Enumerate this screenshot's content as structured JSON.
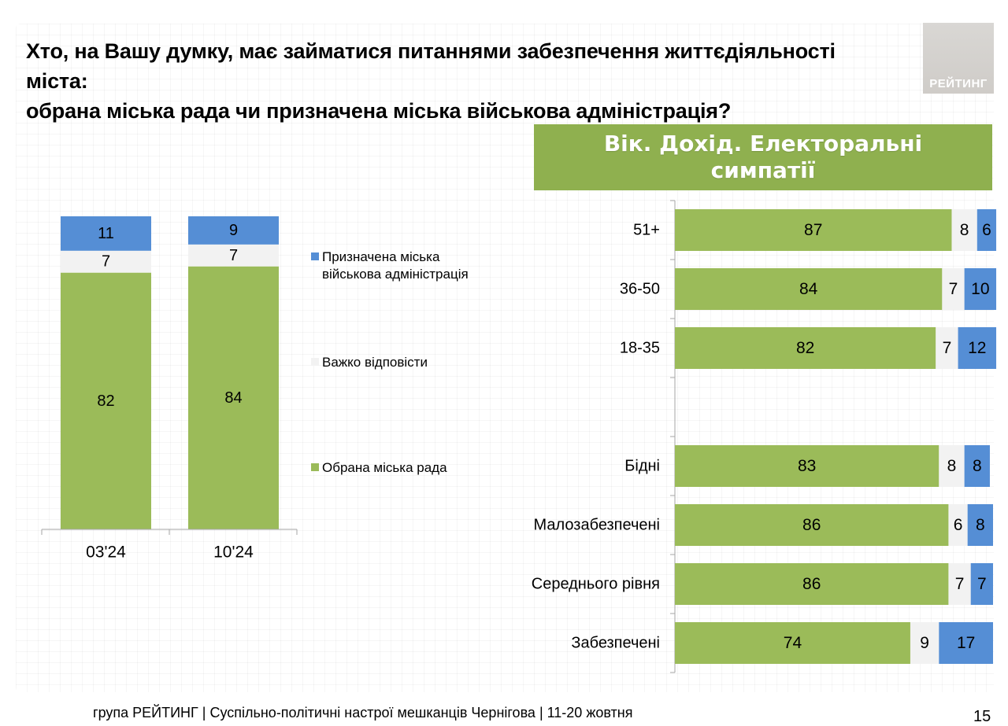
{
  "title": {
    "line1": "Хто, на Вашу думку, має займатися питаннями забезпечення життєдіяльності міста:",
    "line2": "обрана міська рада чи призначена міська військова адміністрація?"
  },
  "logo": {
    "text": "РЕЙТИНГ"
  },
  "banner": {
    "line1": "Вік. Дохід. Електоральні",
    "line2": "симпатії"
  },
  "colors": {
    "green": "#9bbb59",
    "light": "#f2f2f2",
    "blue": "#558ed5",
    "banner": "#8fb04f"
  },
  "legend": [
    {
      "key": "admin",
      "line1": "Призначена міська",
      "line2": "військова адміністрація"
    },
    {
      "key": "hard",
      "line1": "Важко відповісти",
      "line2": ""
    },
    {
      "key": "council",
      "line1": "Обрана міська рада",
      "line2": ""
    }
  ],
  "chart_data": [
    {
      "type": "bar",
      "stacked": true,
      "orientation": "vertical",
      "categories": [
        "03'24",
        "10'24"
      ],
      "series": [
        {
          "name": "Обрана міська рада",
          "color_key": "green",
          "values": [
            82,
            84
          ]
        },
        {
          "name": "Важко відповісти",
          "color_key": "light",
          "values": [
            7,
            7
          ]
        },
        {
          "name": "Призначена міська військова адміністрація",
          "color_key": "blue",
          "values": [
            11,
            9
          ]
        }
      ],
      "ylim": [
        0,
        100
      ]
    },
    {
      "type": "bar",
      "stacked": true,
      "orientation": "horizontal",
      "title": "Вік. Дохід. Електоральні симпатії",
      "categories": [
        "51+",
        "36-50",
        "18-35",
        "",
        "Бідні",
        "Малозабезпечені",
        "Середнього рівня",
        "Забезпечені"
      ],
      "series": [
        {
          "name": "Обрана міська рада",
          "color_key": "green",
          "values": [
            87,
            84,
            82,
            null,
            83,
            86,
            86,
            74
          ]
        },
        {
          "name": "Важко відповісти",
          "color_key": "light",
          "values": [
            8,
            7,
            7,
            null,
            8,
            6,
            7,
            9
          ]
        },
        {
          "name": "Призначена міська військова адміністрація",
          "color_key": "blue",
          "values": [
            6,
            10,
            12,
            null,
            8,
            8,
            7,
            17
          ]
        }
      ],
      "xlim": [
        0,
        100
      ]
    }
  ],
  "footer": {
    "text": "група РЕЙТИНГ  | Суспільно-політичні настрої мешканців Чернігова | 11-20 жовтня"
  },
  "page_number": "15"
}
